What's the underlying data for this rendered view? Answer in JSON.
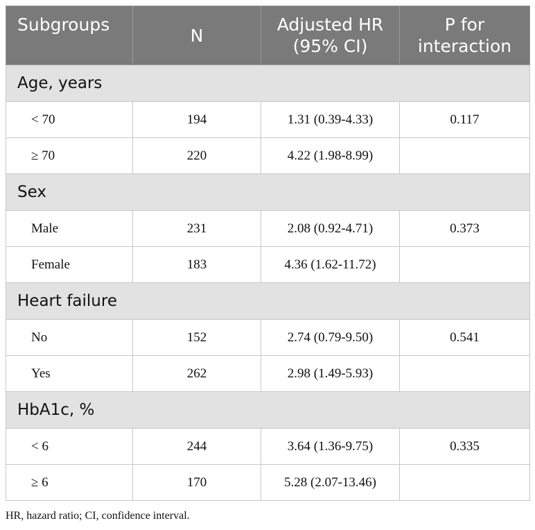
{
  "header": {
    "subgroups": "Subgroups",
    "n": "N",
    "hr_line1": "Adjusted HR",
    "hr_line2": "(95% CI)",
    "p_line1": "P for",
    "p_line2": "interaction"
  },
  "groups": [
    {
      "label": "Age, years",
      "rows": [
        {
          "subgroup": "< 70",
          "n": "194",
          "hr": "1.31 (0.39-4.33)",
          "p": "0.117"
        },
        {
          "subgroup": "≥ 70",
          "n": "220",
          "hr": "4.22 (1.98-8.99)",
          "p": ""
        }
      ]
    },
    {
      "label": "Sex",
      "rows": [
        {
          "subgroup": "Male",
          "n": "231",
          "hr": "2.08 (0.92-4.71)",
          "p": "0.373"
        },
        {
          "subgroup": "Female",
          "n": "183",
          "hr": "4.36 (1.62-11.72)",
          "p": ""
        }
      ]
    },
    {
      "label": "Heart failure",
      "rows": [
        {
          "subgroup": "No",
          "n": "152",
          "hr": "2.74 (0.79-9.50)",
          "p": "0.541"
        },
        {
          "subgroup": "Yes",
          "n": "262",
          "hr": "2.98 (1.49-5.93)",
          "p": ""
        }
      ]
    },
    {
      "label": "HbA1c, %",
      "rows": [
        {
          "subgroup": "< 6",
          "n": "244",
          "hr": "3.64 (1.36-9.75)",
          "p": "0.335"
        },
        {
          "subgroup": "≥ 6",
          "n": "170",
          "hr": "5.28 (2.07-13.46)",
          "p": ""
        }
      ]
    }
  ],
  "footnote": "HR, hazard ratio; CI, confidence interval."
}
